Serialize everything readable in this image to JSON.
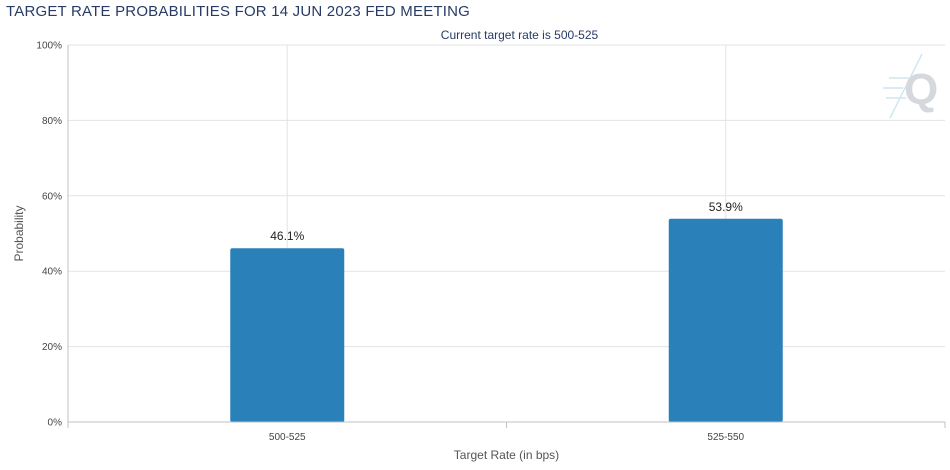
{
  "chart_data": {
    "type": "bar",
    "title": "TARGET RATE PROBABILITIES FOR 14 JUN 2023 FED MEETING",
    "subtitle": "Current target rate is 500-525",
    "xlabel": "Target Rate (in bps)",
    "ylabel": "Probability",
    "categories": [
      "500-525",
      "525-550"
    ],
    "values": [
      46.1,
      53.9
    ],
    "data_labels": [
      "46.1%",
      "53.9%"
    ],
    "ylim": [
      0,
      100
    ],
    "yticks": [
      0,
      20,
      40,
      60,
      80,
      100
    ],
    "ytick_labels": [
      "0%",
      "20%",
      "40%",
      "60%",
      "80%",
      "100%"
    ],
    "grid": true,
    "legend": "none",
    "bar_color": "#2a80b9",
    "logo_icon": "q-logo-icon"
  }
}
